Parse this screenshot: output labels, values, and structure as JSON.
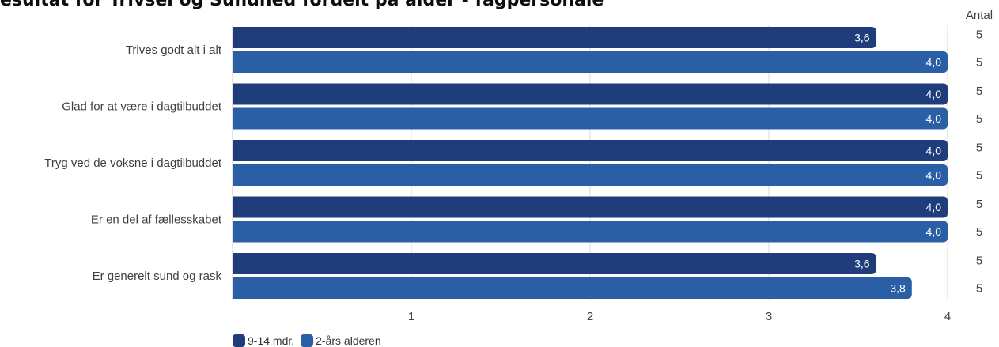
{
  "title": "esultat for Trivsel og Sundhed fordelt på alder - fagpersonale",
  "count_header": "Antal",
  "colors": {
    "series1": "#1f3d7a",
    "series2": "#2a5fa5",
    "grid": "#d9d9d9",
    "text": "#404040"
  },
  "chart_data": {
    "type": "bar",
    "orientation": "horizontal",
    "title": "esultat for Trivsel og Sundhed fordelt på alder - fagpersonale",
    "categories": [
      "Trives godt alt i alt",
      "Glad for at være i dagtilbuddet",
      "Tryg ved de voksne i dagtilbuddet",
      "Er en del af fællesskabet",
      "Er generelt sund og rask"
    ],
    "series": [
      {
        "name": "9-14 mdr.",
        "values": [
          3.6,
          4.0,
          4.0,
          4.0,
          3.6
        ],
        "labels": [
          "3,6",
          "4,0",
          "4,0",
          "4,0",
          "3,6"
        ],
        "counts": [
          5,
          5,
          5,
          5,
          5
        ]
      },
      {
        "name": "2-års alderen",
        "values": [
          4.0,
          4.0,
          4.0,
          4.0,
          3.8
        ],
        "labels": [
          "4,0",
          "4,0",
          "4,0",
          "4,0",
          "3,8"
        ],
        "counts": [
          5,
          5,
          5,
          5,
          5
        ]
      }
    ],
    "xlim": [
      0,
      4
    ],
    "xticks": [
      1,
      2,
      3,
      4
    ],
    "grid": true,
    "legend": "bottom-left"
  }
}
